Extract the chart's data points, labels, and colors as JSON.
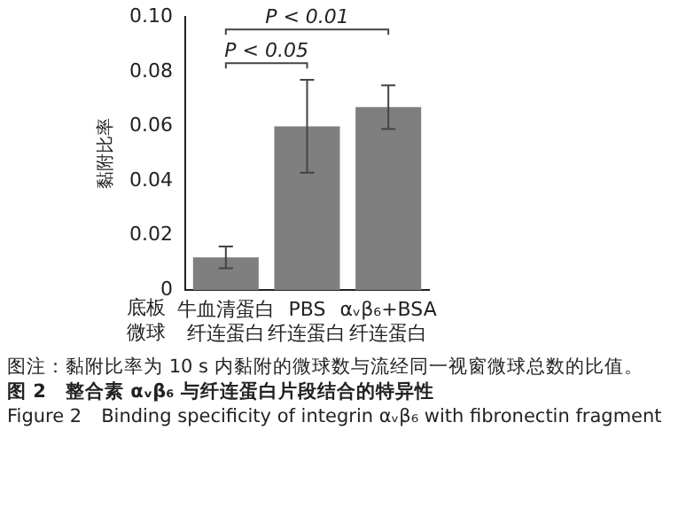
{
  "chart_data": {
    "type": "bar",
    "title": "图 2　整合素 αᵥβ₆ 与纤连蛋白片段结合的特异性",
    "subtitle": "Figure 2　Binding specificity of integrin αᵥβ₆ with fibronectin fragment",
    "ylabel": "黏附比率",
    "categories": [
      "牛血清蛋白纤连蛋白",
      "PBS纤连蛋白",
      "αᵥβ₆+BSA纤连蛋白"
    ],
    "values": [
      0.012,
      0.06,
      0.067
    ],
    "errors": [
      0.004,
      0.017,
      0.008
    ],
    "color": "#7f7f7f",
    "ylim": [
      0,
      0.1
    ],
    "yticks": [
      0,
      {
        "value": 0.02,
        "label": "0.02"
      },
      {
        "value": 0.04,
        "label": "0.04"
      },
      {
        "value": 0.06,
        "label": "0.06"
      },
      {
        "value": 0.08,
        "label": "0.08"
      },
      {
        "value": 0.1,
        "label": "0.10"
      }
    ],
    "grid": false,
    "legend": false,
    "annotations": [
      "P < 0.05",
      "P < 0.01",
      "底板微球",
      "图注：黏附比率为 10 s 内黏附的微球数与流经同一视窗微球总数的比值。"
    ]
  }
}
